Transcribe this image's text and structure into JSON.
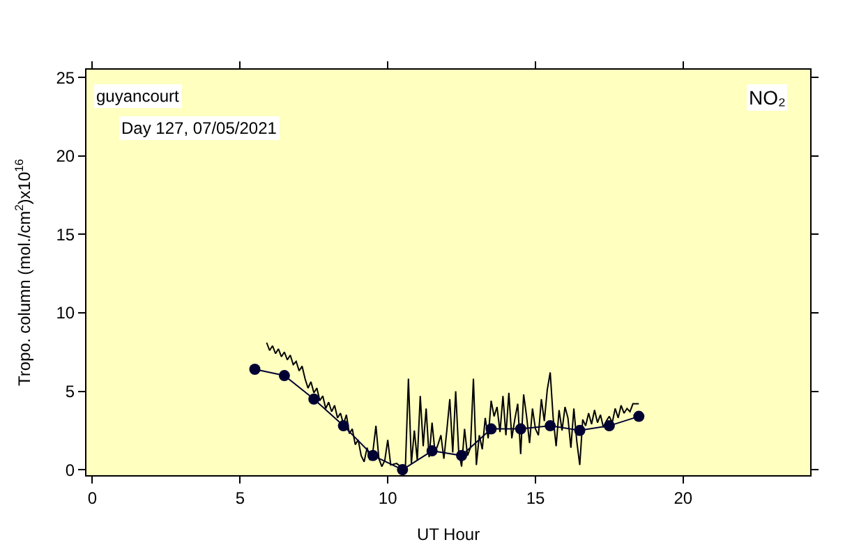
{
  "chart_data": {
    "type": "line",
    "xlabel": "UT Hour",
    "ylabel": "Tropo. column (mol./cm$^{2}$)x10$^{16}$",
    "annotations": [
      "guyancourt",
      "Day 127, 07/05/2021",
      "NO₂"
    ],
    "xlim": [
      -0.2,
      24.3
    ],
    "ylim": [
      -0.35,
      25.5
    ],
    "xticks": [
      0,
      5,
      10,
      15,
      20
    ],
    "yticks": [
      0,
      5,
      10,
      15,
      20,
      25
    ],
    "grid": false,
    "series": [
      {
        "color": "#000000",
        "marker": "none",
        "x": [
          5.9,
          6.0,
          6.1,
          6.2,
          6.3,
          6.4,
          6.5,
          6.6,
          6.7,
          6.8,
          6.9,
          7.0,
          7.1,
          7.2,
          7.3,
          7.4,
          7.5,
          7.6,
          7.7,
          7.8,
          7.9,
          8.0,
          8.1,
          8.2,
          8.3,
          8.4,
          8.5,
          8.6,
          8.7,
          8.8,
          8.9,
          9.0,
          9.1,
          9.2,
          9.3,
          9.4,
          9.5,
          9.6,
          9.7,
          9.8,
          9.9,
          10.0,
          10.1,
          10.3,
          10.5,
          10.6,
          10.7,
          10.8,
          10.9,
          11.0,
          11.1,
          11.2,
          11.3,
          11.4,
          11.5,
          11.6,
          11.7,
          11.8,
          11.9,
          12.0,
          12.1,
          12.2,
          12.3,
          12.4,
          12.5,
          12.6,
          12.7,
          12.8,
          12.9,
          13.0,
          13.1,
          13.2,
          13.3,
          13.4,
          13.5,
          13.6,
          13.7,
          13.8,
          13.9,
          14.0,
          14.1,
          14.2,
          14.3,
          14.4,
          14.5,
          14.6,
          14.7,
          14.8,
          14.9,
          15.0,
          15.1,
          15.2,
          15.3,
          15.4,
          15.5,
          15.6,
          15.7,
          15.8,
          15.9,
          16.0,
          16.1,
          16.2,
          16.3,
          16.4,
          16.5,
          16.6,
          16.7,
          16.8,
          16.9,
          17.0,
          17.1,
          17.2,
          17.3,
          17.4,
          17.5,
          17.6,
          17.7,
          17.8,
          17.9,
          18.0,
          18.1,
          18.2,
          18.3,
          18.5
        ],
        "values": [
          8.1,
          7.6,
          7.9,
          7.4,
          7.7,
          7.2,
          7.5,
          7.0,
          7.3,
          6.7,
          6.9,
          6.3,
          6.6,
          5.8,
          5.2,
          5.6,
          4.9,
          5.2,
          4.4,
          4.7,
          3.9,
          4.3,
          3.7,
          4.1,
          3.3,
          3.6,
          2.9,
          3.5,
          2.3,
          2.6,
          1.6,
          1.9,
          0.9,
          0.5,
          1.4,
          0.6,
          1.2,
          2.8,
          0.7,
          0.2,
          0.6,
          1.9,
          0.3,
          0.4,
          0.1,
          0.3,
          5.8,
          0.4,
          2.5,
          0.6,
          4.7,
          1.5,
          3.9,
          0.8,
          3.0,
          1.1,
          1.6,
          2.2,
          0.7,
          2.5,
          4.5,
          1.1,
          5.0,
          1.2,
          0.2,
          2.6,
          0.9,
          1.4,
          5.8,
          0.3,
          2.2,
          1.3,
          3.3,
          2.0,
          4.4,
          3.4,
          4.0,
          2.4,
          4.7,
          2.2,
          4.9,
          2.0,
          3.2,
          4.2,
          1.0,
          4.8,
          3.4,
          1.7,
          3.9,
          2.6,
          2.2,
          4.5,
          3.1,
          5.1,
          6.2,
          3.3,
          1.5,
          3.8,
          2.5,
          4.0,
          3.3,
          1.4,
          3.9,
          1.8,
          0.3,
          3.2,
          2.8,
          3.6,
          2.9,
          3.8,
          3.0,
          3.5,
          2.7,
          3.1,
          3.4,
          3.0,
          3.9,
          3.3,
          4.1,
          3.6,
          3.9,
          3.7,
          4.2,
          4.2
        ]
      },
      {
        "color": "#000033",
        "marker": "circle",
        "x": [
          5.5,
          6.5,
          7.5,
          8.5,
          9.5,
          10.5,
          11.5,
          12.5,
          13.5,
          14.5,
          15.5,
          16.5,
          17.5,
          18.5
        ],
        "values": [
          6.4,
          6.0,
          4.5,
          2.8,
          0.9,
          0.0,
          1.2,
          0.9,
          2.6,
          2.6,
          2.8,
          2.5,
          2.8,
          3.4
        ]
      }
    ]
  }
}
